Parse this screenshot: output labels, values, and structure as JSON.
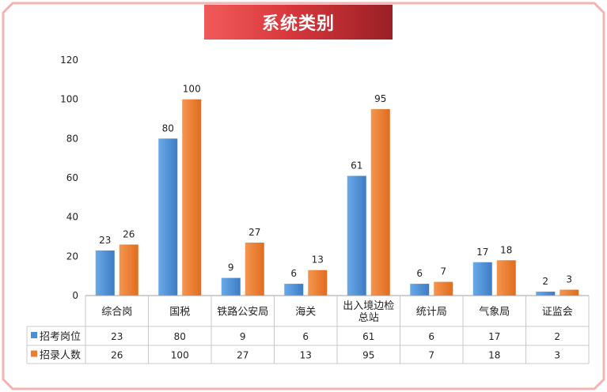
{
  "chart_data": {
    "type": "bar",
    "title": "系统类别",
    "categories": [
      "综合岗",
      "国税",
      "铁路公安局",
      "海关",
      "出入境边检总站",
      "统计局",
      "气象局",
      "证监会"
    ],
    "category_lines": [
      [
        "综合岗"
      ],
      [
        "国税"
      ],
      [
        "铁路公安局"
      ],
      [
        "海关"
      ],
      [
        "出入境边检",
        "总站"
      ],
      [
        "统计局"
      ],
      [
        "气象局"
      ],
      [
        "证监会"
      ]
    ],
    "series": [
      {
        "name": "招考岗位",
        "values": [
          23,
          80,
          9,
          6,
          61,
          6,
          17,
          2
        ],
        "color": "#4a90d9"
      },
      {
        "name": "招录人数",
        "values": [
          26,
          100,
          27,
          13,
          95,
          7,
          18,
          3
        ],
        "color": "#ed7d31"
      }
    ],
    "ylim": [
      0,
      120
    ],
    "yticks": [
      0,
      20,
      40,
      60,
      80,
      100,
      120
    ],
    "grid": false,
    "data_table": true
  },
  "colors": {
    "border": "#f4b3b3",
    "title_start": "#f05a5a",
    "title_end": "#9a1f26"
  }
}
